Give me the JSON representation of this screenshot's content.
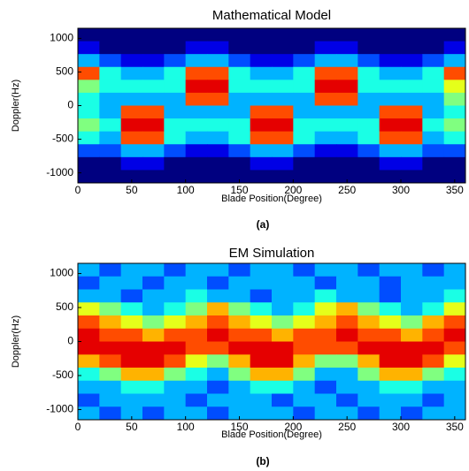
{
  "chart_data": [
    {
      "type": "heatmap",
      "title": "Mathematical Model",
      "xlabel": "Blade Position(Degree)",
      "ylabel": "Doppler(Hz)",
      "caption": "(a)",
      "xlim": [
        0,
        360
      ],
      "ylim": [
        -1150,
        1150
      ],
      "xticks": [
        0,
        50,
        100,
        150,
        200,
        250,
        300,
        350
      ],
      "yticks": [
        -1000,
        -500,
        0,
        500,
        1000
      ],
      "colormap": "jet",
      "zlim": [
        0,
        10
      ],
      "z": [
        [
          0,
          0,
          0,
          0,
          0,
          0,
          0,
          0,
          0,
          0,
          0,
          0,
          0,
          0,
          0,
          0,
          0,
          0
        ],
        [
          1,
          0,
          0,
          0,
          0,
          1,
          1,
          0,
          0,
          0,
          0,
          1,
          1,
          0,
          0,
          0,
          0,
          1
        ],
        [
          3,
          2,
          1,
          1,
          2,
          3,
          3,
          2,
          1,
          1,
          2,
          3,
          3,
          2,
          1,
          1,
          2,
          3
        ],
        [
          8,
          4,
          3,
          3,
          4,
          8,
          8,
          4,
          3,
          3,
          4,
          8,
          8,
          4,
          3,
          3,
          4,
          8
        ],
        [
          5,
          4,
          4,
          4,
          4,
          9,
          9,
          4,
          4,
          4,
          4,
          9,
          9,
          4,
          4,
          4,
          4,
          6
        ],
        [
          4,
          3,
          3,
          3,
          3,
          8,
          8,
          3,
          3,
          3,
          3,
          8,
          8,
          3,
          3,
          3,
          3,
          5
        ],
        [
          4,
          3,
          8,
          8,
          3,
          3,
          3,
          3,
          8,
          8,
          3,
          3,
          3,
          3,
          8,
          8,
          3,
          4
        ],
        [
          5,
          4,
          9,
          9,
          4,
          4,
          4,
          4,
          9,
          9,
          4,
          4,
          4,
          4,
          9,
          9,
          4,
          5
        ],
        [
          4,
          3,
          8,
          8,
          4,
          3,
          3,
          4,
          8,
          8,
          4,
          3,
          3,
          4,
          8,
          8,
          3,
          4
        ],
        [
          2,
          2,
          3,
          3,
          2,
          1,
          1,
          2,
          3,
          3,
          2,
          1,
          1,
          2,
          3,
          3,
          2,
          2
        ],
        [
          0,
          0,
          1,
          1,
          0,
          0,
          0,
          0,
          1,
          1,
          0,
          0,
          0,
          0,
          1,
          1,
          0,
          0
        ],
        [
          0,
          0,
          0,
          0,
          0,
          0,
          0,
          0,
          0,
          0,
          0,
          0,
          0,
          0,
          0,
          0,
          0,
          0
        ]
      ]
    },
    {
      "type": "heatmap",
      "title": "EM Simulation",
      "xlabel": "Blade Position(Degree)",
      "ylabel": "Doppler(Hz)",
      "caption": "(b)",
      "xlim": [
        0,
        360
      ],
      "ylim": [
        -1150,
        1150
      ],
      "xticks": [
        0,
        50,
        100,
        150,
        200,
        250,
        300,
        350
      ],
      "yticks": [
        -1000,
        -500,
        0,
        500,
        1000
      ],
      "colormap": "jet",
      "zlim": [
        0,
        10
      ],
      "z": [
        [
          3,
          2,
          3,
          3,
          2,
          3,
          3,
          2,
          3,
          3,
          2,
          3,
          3,
          2,
          3,
          3,
          2,
          3
        ],
        [
          2,
          3,
          3,
          2,
          3,
          3,
          2,
          3,
          3,
          3,
          3,
          2,
          3,
          3,
          2,
          3,
          3,
          3
        ],
        [
          3,
          3,
          2,
          3,
          3,
          4,
          3,
          3,
          2,
          3,
          3,
          4,
          3,
          3,
          2,
          3,
          3,
          4
        ],
        [
          6,
          5,
          4,
          3,
          4,
          5,
          7,
          5,
          4,
          3,
          4,
          6,
          7,
          5,
          4,
          3,
          4,
          6
        ],
        [
          8,
          7,
          6,
          5,
          6,
          7,
          8,
          7,
          6,
          5,
          6,
          7,
          8,
          7,
          6,
          5,
          7,
          8
        ],
        [
          9,
          8,
          8,
          7,
          8,
          8,
          9,
          8,
          8,
          7,
          8,
          8,
          9,
          8,
          8,
          7,
          8,
          9
        ],
        [
          9,
          9,
          9,
          9,
          9,
          8,
          8,
          9,
          9,
          9,
          8,
          8,
          8,
          9,
          9,
          9,
          9,
          8
        ],
        [
          7,
          8,
          9,
          9,
          8,
          6,
          5,
          7,
          9,
          9,
          7,
          5,
          5,
          7,
          9,
          9,
          8,
          6
        ],
        [
          4,
          5,
          7,
          7,
          5,
          4,
          3,
          5,
          7,
          7,
          5,
          3,
          3,
          5,
          7,
          7,
          5,
          4
        ],
        [
          3,
          3,
          4,
          4,
          3,
          3,
          2,
          3,
          4,
          4,
          3,
          2,
          3,
          3,
          4,
          4,
          3,
          3
        ],
        [
          2,
          3,
          3,
          3,
          3,
          2,
          3,
          3,
          3,
          2,
          3,
          3,
          2,
          3,
          3,
          3,
          2,
          3
        ],
        [
          3,
          2,
          3,
          2,
          3,
          3,
          2,
          3,
          3,
          3,
          2,
          3,
          3,
          2,
          3,
          2,
          3,
          3
        ]
      ]
    }
  ]
}
